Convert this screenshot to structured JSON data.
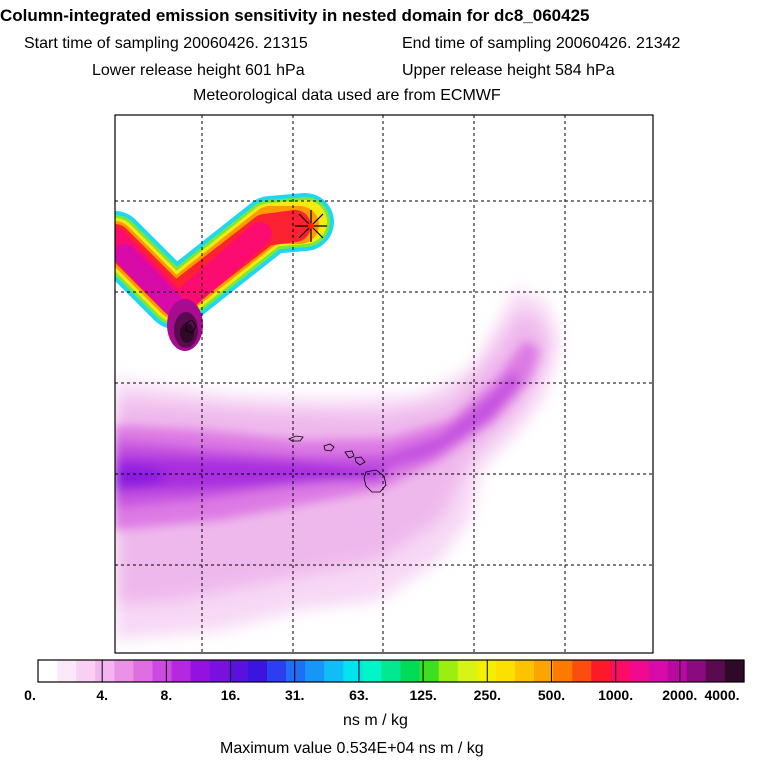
{
  "header": {
    "title": "Column-integrated emission sensitivity in nested domain for dc8_060425",
    "start_label": "Start time of sampling",
    "start_value": "20060426. 21315",
    "end_label": "End time of sampling",
    "end_value": "20060426. 21342",
    "lower_label": "Lower release height",
    "lower_value": "601 hPa",
    "upper_label": "Upper release height",
    "upper_value": "584 hPa",
    "met_line": "Meteorological data used are from ECMWF"
  },
  "chart_data": {
    "type": "heatmap",
    "title": "Column-integrated emission sensitivity in nested domain for dc8_060425",
    "colorbar": {
      "ticks": [
        "0.",
        "4.",
        "8.",
        "16.",
        "31.",
        "63.",
        "125.",
        "250.",
        "500.",
        "1000.",
        "2000.",
        "4000."
      ],
      "units": "ns m / kg",
      "colors": [
        "#ffffff",
        "#fde8fb",
        "#f9cff5",
        "#f3b4ef",
        "#eb92e8",
        "#de6ee2",
        "#cc4ae0",
        "#b428df",
        "#9312df",
        "#7a10df",
        "#5a10df",
        "#3b14e0",
        "#2b3ef0",
        "#1f6ef5",
        "#1896f5",
        "#10bef5",
        "#00e4ee",
        "#00f5c8",
        "#00e890",
        "#00dc58",
        "#3ce020",
        "#9cee10",
        "#d6f514",
        "#f2f000",
        "#fce000",
        "#fcc400",
        "#fca400",
        "#fc7a00",
        "#fc4c10",
        "#fc1a2a",
        "#fc0c64",
        "#f00a90",
        "#d80aa8",
        "#b80aa0",
        "#8a0a80",
        "#5a0a50",
        "#300828"
      ]
    },
    "max_value_label": "Maximum value",
    "max_value": "0.534E+04",
    "max_value_units": "ns m / kg",
    "release_marker": "release point (star)",
    "gridlines": "dashed"
  }
}
